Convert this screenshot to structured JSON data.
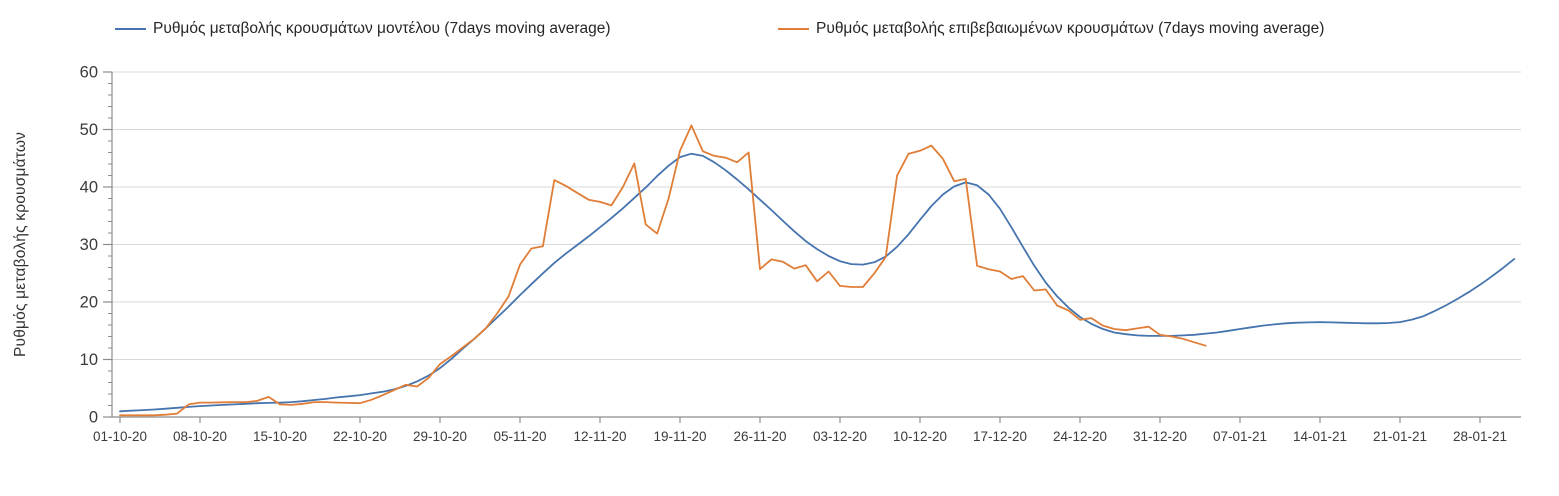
{
  "legend": {
    "items": [
      {
        "label": "Ρυθμός μεταβολής κρουσμάτων μοντέλου (7days moving average)"
      },
      {
        "label": "Ρυθμός μεταβολής επιβεβαιωμένων κρουσμάτων (7days moving average)"
      }
    ]
  },
  "y_axis": {
    "title": "Ρυθμός μεταβολής κρουσμάτων"
  },
  "colors": {
    "model_line": "#4674AE",
    "confirmed_line": "#E07E38",
    "gridline": "#D9D9D9",
    "axis": "#8C8C8C",
    "tick_label": "#3B3B3B"
  },
  "chart_data": {
    "type": "line",
    "title": "",
    "ylabel": "Ρυθμός μεταβολής κρουσμάτων",
    "xlabel": "",
    "ylim": [
      0,
      60
    ],
    "y_ticks": [
      0,
      10,
      20,
      30,
      40,
      50,
      60
    ],
    "y_minor_tick_step": 2,
    "grid": "horizontal",
    "legend_position": "top",
    "x_mode": "daily",
    "x_start_date": "01-10-20",
    "x_tick_interval_days": 7,
    "x_tick_labels": [
      "01-10-20",
      "08-10-20",
      "15-10-20",
      "22-10-20",
      "29-10-20",
      "05-11-20",
      "12-11-20",
      "19-11-20",
      "26-11-20",
      "03-12-20",
      "10-12-20",
      "17-12-20",
      "24-12-20",
      "31-12-20",
      "07-01-21",
      "14-01-21",
      "21-01-21",
      "28-01-21"
    ],
    "series": [
      {
        "name": "Ρυθμός μεταβολής κρουσμάτων μοντέλου (7days moving average)",
        "color": "#4674AE",
        "start_date": "01-10-20",
        "end_date": "31-01-21",
        "values": [
          1.0,
          1.1,
          1.2,
          1.3,
          1.45,
          1.6,
          1.75,
          1.9,
          2.0,
          2.1,
          2.2,
          2.3,
          2.4,
          2.45,
          2.5,
          2.6,
          2.75,
          2.95,
          3.15,
          3.4,
          3.6,
          3.8,
          4.1,
          4.4,
          4.8,
          5.4,
          6.2,
          7.2,
          8.5,
          10.1,
          11.9,
          13.6,
          15.4,
          17.3,
          19.2,
          21.2,
          23.1,
          25.0,
          26.8,
          28.4,
          29.9,
          31.4,
          33.0,
          34.6,
          36.3,
          38.1,
          39.9,
          41.9,
          43.7,
          45.2,
          45.8,
          45.4,
          44.3,
          42.9,
          41.3,
          39.6,
          37.8,
          36.0,
          34.1,
          32.3,
          30.6,
          29.2,
          28.0,
          27.1,
          26.6,
          26.5,
          26.9,
          27.9,
          29.6,
          31.8,
          34.3,
          36.7,
          38.7,
          40.1,
          40.8,
          40.3,
          38.7,
          36.2,
          33.0,
          29.6,
          26.3,
          23.4,
          21.0,
          19.0,
          17.4,
          16.2,
          15.3,
          14.7,
          14.4,
          14.2,
          14.1,
          14.1,
          14.1,
          14.2,
          14.3,
          14.5,
          14.7,
          15.0,
          15.3,
          15.6,
          15.9,
          16.1,
          16.3,
          16.4,
          16.45,
          16.5,
          16.45,
          16.4,
          16.35,
          16.3,
          16.3,
          16.35,
          16.5,
          16.9,
          17.5,
          18.4,
          19.4,
          20.5,
          21.7,
          23.0,
          24.4,
          25.9,
          27.5
        ]
      },
      {
        "name": "Ρυθμός μεταβολής επιβεβαιωμένων κρουσμάτων (7days moving average)",
        "color": "#E07E38",
        "start_date": "01-10-20",
        "end_date": "04-01-21",
        "values": [
          0.3,
          0.3,
          0.3,
          0.3,
          0.4,
          0.6,
          2.2,
          2.5,
          2.5,
          2.55,
          2.6,
          2.6,
          2.8,
          3.5,
          2.2,
          2.1,
          2.3,
          2.6,
          2.6,
          2.5,
          2.45,
          2.4,
          3.0,
          3.8,
          4.7,
          5.6,
          5.3,
          6.8,
          9.2,
          10.6,
          12.1,
          13.6,
          15.4,
          18.0,
          21.0,
          26.5,
          29.3,
          29.7,
          41.2,
          40.2,
          39.0,
          37.8,
          37.4,
          36.8,
          40.0,
          44.1,
          33.5,
          31.9,
          38.0,
          46.3,
          50.7,
          46.2,
          45.4,
          45.1,
          44.3,
          46.0,
          25.7,
          27.4,
          27.0,
          25.8,
          26.4,
          23.6,
          25.3,
          22.8,
          22.6,
          22.6,
          25.0,
          27.8,
          42.0,
          45.8,
          46.3,
          47.2,
          44.9,
          41.0,
          41.4,
          26.3,
          25.7,
          25.3,
          24.0,
          24.5,
          22.0,
          22.2,
          19.4,
          18.5,
          16.9,
          17.2,
          15.9,
          15.3,
          15.1,
          15.4,
          15.7,
          14.3,
          14.0,
          13.6,
          13.0,
          12.4
        ]
      }
    ]
  }
}
